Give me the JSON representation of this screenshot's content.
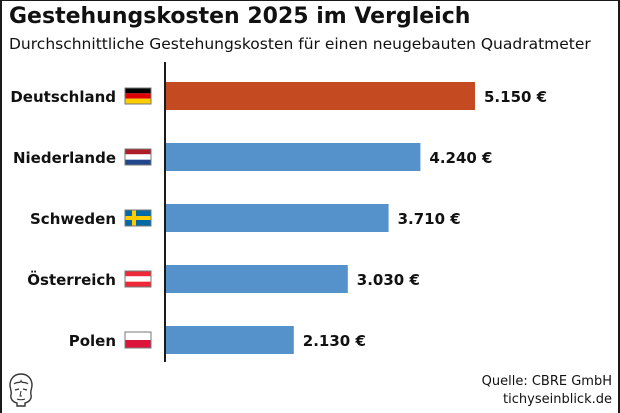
{
  "header": {
    "title": "Gestehungskosten 2025 im Vergleich",
    "subtitle": "Durchschnittliche Gestehungskosten für einen neugebauten Quadratmeter"
  },
  "footer": {
    "source": "Quelle: CBRE GmbH",
    "site": "tichyseinblick.de"
  },
  "colors": {
    "highlight": "#c44a22",
    "bar": "#5592cc",
    "text": "#111111"
  },
  "chart_data": {
    "type": "bar",
    "orientation": "horizontal",
    "title": "Gestehungskosten 2025 im Vergleich",
    "subtitle": "Durchschnittliche Gestehungskosten für einen neugebauten Quadratmeter",
    "categories": [
      "Deutschland",
      "Niederlande",
      "Schweden",
      "Österreich",
      "Polen"
    ],
    "flags": [
      "flag-de",
      "flag-nl",
      "flag-se",
      "flag-at",
      "flag-pl"
    ],
    "values": [
      5150,
      4240,
      3710,
      3030,
      2130
    ],
    "labels": [
      "5.150 €",
      "4.240 €",
      "3.710 €",
      "3.030 €",
      "2.130 €"
    ],
    "highlight_index": 0,
    "xlim": [
      0,
      5150
    ],
    "grid": false,
    "legend": "none"
  }
}
